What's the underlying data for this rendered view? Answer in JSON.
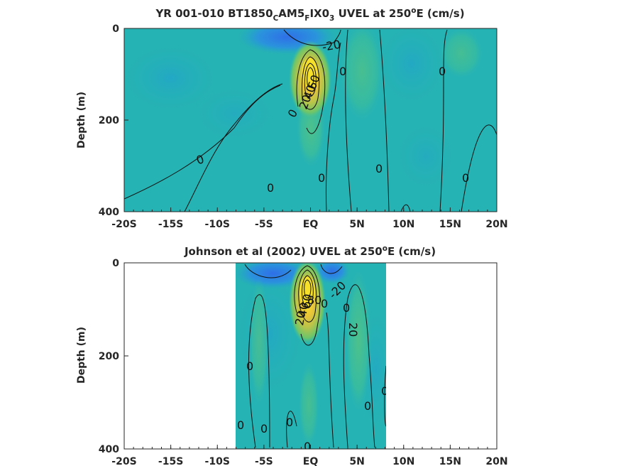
{
  "chart_data": [
    {
      "type": "heatmap",
      "title_parts": [
        {
          "text": "YR 001-010 BT1850",
          "style": "normal"
        },
        {
          "text": "C",
          "style": "sub"
        },
        {
          "text": "AM5",
          "style": "normal"
        },
        {
          "text": "F",
          "style": "sub"
        },
        {
          "text": "IX0",
          "style": "normal"
        },
        {
          "text": "3",
          "style": "sub"
        },
        {
          "text": " UVEL at 250",
          "style": "normal"
        },
        {
          "text": "o",
          "style": "sup"
        },
        {
          "text": "E (cm/s)",
          "style": "normal"
        }
      ],
      "ylabel": "Depth (m)",
      "xlim": [
        -20,
        20
      ],
      "ylim": [
        0,
        400
      ],
      "y_reversed": true,
      "x_ticks": [
        -20,
        -15,
        -10,
        -5,
        0,
        5,
        10,
        15,
        20
      ],
      "x_tick_labels": [
        "-20S",
        "-15S",
        "-10S",
        "-5S",
        "EQ",
        "5N",
        "10N",
        "15N",
        "20N"
      ],
      "y_ticks": [
        0,
        200,
        400
      ],
      "y_tick_labels": [
        "0",
        "200",
        "400"
      ],
      "data_extent_x": [
        -20,
        20
      ],
      "features": [
        {
          "kind": "core",
          "x": 0,
          "depth": 100,
          "value": 90
        },
        {
          "kind": "surface-westward",
          "x": -3,
          "depth": 10,
          "value": -25
        },
        {
          "kind": "weak-eastward",
          "x": 5,
          "depth": 80,
          "value": 15
        },
        {
          "kind": "weak-eastward",
          "x": 15,
          "depth": 60,
          "value": 8
        }
      ],
      "contour_labels": [
        "-20",
        "0",
        "0",
        "0",
        "0",
        "0",
        "0",
        "0",
        "0",
        "20",
        "40",
        "60"
      ]
    },
    {
      "type": "heatmap",
      "title_parts": [
        {
          "text": "Johnson et al (2002) UVEL at 250",
          "style": "normal"
        },
        {
          "text": "o",
          "style": "sup"
        },
        {
          "text": "E (cm/s)",
          "style": "normal"
        }
      ],
      "ylabel": "Depth (m)",
      "xlim": [
        -20,
        20
      ],
      "ylim": [
        0,
        400
      ],
      "y_reversed": true,
      "x_ticks": [
        -20,
        -15,
        -10,
        -5,
        0,
        5,
        10,
        15,
        20
      ],
      "x_tick_labels": [
        "-20S",
        "-15S",
        "-10S",
        "-5S",
        "EQ",
        "5N",
        "10N",
        "15N",
        "20N"
      ],
      "y_ticks": [
        0,
        200,
        400
      ],
      "y_tick_labels": [
        "0",
        "200",
        "400"
      ],
      "data_extent_x": [
        -8,
        8.2
      ],
      "features": [
        {
          "kind": "core",
          "x": 0,
          "depth": 70,
          "value": 110
        },
        {
          "kind": "surface-westward",
          "x": -4,
          "depth": 15,
          "value": -30
        },
        {
          "kind": "surface-westward",
          "x": 2.5,
          "depth": 10,
          "value": -25
        },
        {
          "kind": "weak-eastward",
          "x": 5,
          "depth": 140,
          "value": 20
        },
        {
          "kind": "weak-eastward",
          "x": -5,
          "depth": 150,
          "value": 10
        }
      ],
      "contour_labels": [
        "-20",
        "20",
        "0",
        "0",
        "0",
        "0",
        "0",
        "0",
        "0",
        "0",
        "0",
        "20",
        "40",
        "60",
        "80"
      ]
    }
  ]
}
